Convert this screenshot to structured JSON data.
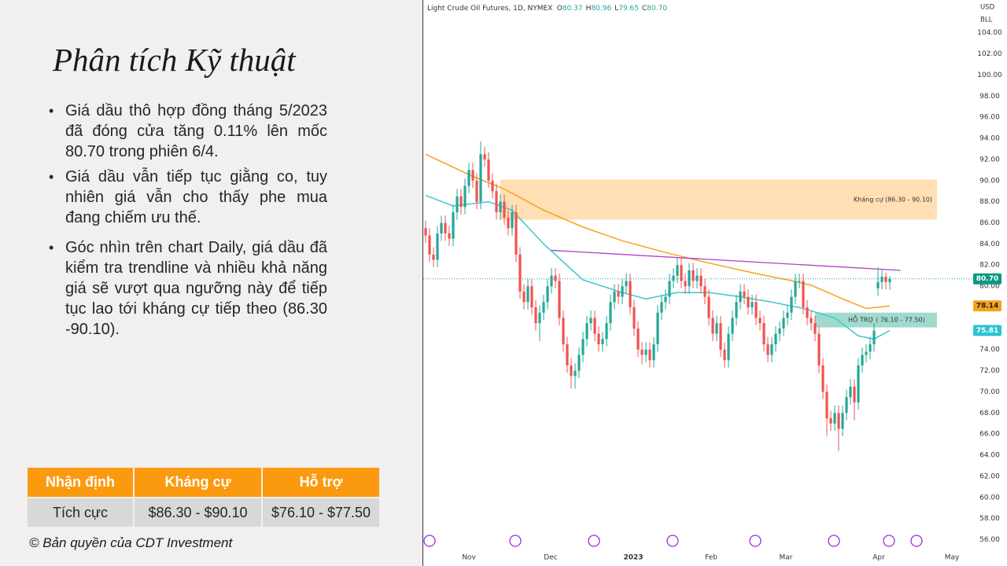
{
  "slide": {
    "title": "Phân tích Kỹ thuật",
    "bullets": [
      "Giá dầu thô hợp đồng tháng 5/2023 đã đóng cửa tăng 0.11% lên mốc 80.70 trong phiên 6/4.",
      "Giá dầu vẫn tiếp tục giằng co, tuy nhiên giá vẫn cho thấy phe mua đang chiếm ưu thế.",
      "Góc nhìn trên chart Daily, giá dầu đã kiểm tra trendline và nhiều khả năng giá sẽ vượt qua ngưỡng này để tiếp tục lao tới kháng cự tiếp theo (86.30 -90.10)."
    ],
    "table": {
      "header": [
        "Nhận định",
        "Kháng cự",
        "Hỗ trợ"
      ],
      "rows": [
        [
          "Tích cực",
          "$86.30 - $90.10",
          "$76.10 - $77.50"
        ]
      ]
    },
    "copyright": "© Bản quyền của CDT Investment"
  },
  "chart_data": {
    "type": "candlestick",
    "title": "Light Crude Oil Futures, 1D, NYMEX",
    "legend": [
      {
        "label": "O",
        "value": 80.37
      },
      {
        "label": "H",
        "value": 80.96
      },
      {
        "label": "L",
        "value": 79.65
      },
      {
        "label": "C",
        "value": 80.7,
        "value_label": "80.70"
      }
    ],
    "currency": "USD",
    "unit": "BLL",
    "up_color": "#26a69a",
    "down_color": "#ef5350",
    "x": [
      0,
      1,
      2,
      3,
      4,
      5,
      6,
      7,
      8,
      9,
      10,
      11,
      12,
      13,
      14,
      15,
      16,
      17,
      18,
      19,
      20,
      21,
      22,
      23,
      24,
      25,
      26,
      27,
      28,
      29,
      30,
      31,
      32,
      33,
      34,
      35,
      36,
      37,
      38,
      39,
      40,
      41,
      42,
      43,
      44,
      45,
      46,
      47,
      48,
      49,
      50,
      51,
      52,
      53,
      54,
      55,
      56,
      57,
      58,
      59,
      60,
      61,
      62,
      63,
      64,
      65,
      66,
      67,
      68,
      69,
      70,
      71,
      72,
      73,
      74,
      75,
      76,
      77,
      78,
      79,
      80,
      81,
      82,
      83,
      84,
      85,
      86,
      87,
      88,
      89,
      90,
      91,
      92,
      93,
      94,
      95,
      96,
      97,
      98,
      99,
      100,
      101,
      102,
      103,
      104,
      105,
      106,
      107,
      108,
      109,
      110,
      111,
      112,
      113,
      114,
      115,
      116,
      117,
      118
    ],
    "open": [
      85.5,
      84.8,
      83,
      82.5,
      85,
      86,
      85,
      84.5,
      87,
      88.5,
      87.5,
      89.5,
      91,
      90,
      88,
      92.5,
      92,
      90,
      89,
      87,
      88,
      86.5,
      85.5,
      87,
      83,
      79.5,
      78.5,
      80,
      78,
      76.5,
      77.5,
      78.5,
      80,
      81,
      80.5,
      77,
      74.5,
      72.5,
      71.5,
      72,
      73.5,
      75,
      76.5,
      77,
      75.5,
      74.5,
      75,
      76.5,
      78.5,
      79.5,
      79,
      80,
      80.5,
      78,
      76,
      74,
      73.5,
      74,
      73,
      74.5,
      77.5,
      78.5,
      79,
      80.5,
      81,
      82,
      80.5,
      80,
      81.5,
      80.5,
      81,
      80,
      79,
      77,
      75.5,
      76.5,
      74,
      73,
      75.5,
      77,
      78.5,
      79.5,
      79,
      78,
      78.5,
      77,
      76.5,
      74.5,
      73.5,
      74.5,
      75.5,
      76,
      77,
      77.5,
      79,
      80.5,
      80.5,
      78,
      77,
      76.5,
      75.5,
      72.5,
      70,
      67.5,
      67,
      68,
      66.5,
      68,
      69.5,
      70.5,
      69,
      72.5,
      73.5,
      73.8,
      74.5,
      79.8,
      80.4,
      80.9,
      80.37
    ],
    "high": [
      86.2,
      85.5,
      83.7,
      85.7,
      86.7,
      86.7,
      85.7,
      87.7,
      89.2,
      89.2,
      90.2,
      91.7,
      91.7,
      90.7,
      93.7,
      93.2,
      92.7,
      90.7,
      89.7,
      88.7,
      88.7,
      87.2,
      87.7,
      87.7,
      83.7,
      80.2,
      80.7,
      80.7,
      78.7,
      78.2,
      79.2,
      80.7,
      81.7,
      81.7,
      81.2,
      77.7,
      75.2,
      73.2,
      72.7,
      74.2,
      75.7,
      77.2,
      77.7,
      77.7,
      76.2,
      75.7,
      77.2,
      79.2,
      80.2,
      80.2,
      80.7,
      81.2,
      81.2,
      78.7,
      76.7,
      74.7,
      74.7,
      74.7,
      75.2,
      78.2,
      79.2,
      79.7,
      81.2,
      81.7,
      82.7,
      82.7,
      81.2,
      82.2,
      82.2,
      81.7,
      81.7,
      80.7,
      79.7,
      77.7,
      77.2,
      77.2,
      74.7,
      76.2,
      77.7,
      79.2,
      80.2,
      80.2,
      79.7,
      79.2,
      79.2,
      77.7,
      77.2,
      75.2,
      75.2,
      76.2,
      76.7,
      77.7,
      78.2,
      79.7,
      81.2,
      81.2,
      81.2,
      78.7,
      77.7,
      77.2,
      76.2,
      73.2,
      70.7,
      68.2,
      68.7,
      68.7,
      68.7,
      70.2,
      71.2,
      71.2,
      73.2,
      74.2,
      74.5,
      75.2,
      76.5,
      81.8,
      81.6,
      81.3,
      80.96
    ],
    "low": [
      84.1,
      82.3,
      81.8,
      81.8,
      84.3,
      84.3,
      83.8,
      83.8,
      86.3,
      86.8,
      86.8,
      88.8,
      89.3,
      87.3,
      87.3,
      91.3,
      89.3,
      88.3,
      86.3,
      86.3,
      85.8,
      84.8,
      84.8,
      82.3,
      78.8,
      77.8,
      77.8,
      77.3,
      75.8,
      74.8,
      76.8,
      77.8,
      79.3,
      79.8,
      76.3,
      73.8,
      71.8,
      70.3,
      70.3,
      71.3,
      72.8,
      74.3,
      75.8,
      74.8,
      73.8,
      73.8,
      74.3,
      75.8,
      77.8,
      78.3,
      78.3,
      79.3,
      77.3,
      75.3,
      73.3,
      72.6,
      72.8,
      72.3,
      72.3,
      73.8,
      76.8,
      77.8,
      78.3,
      79.8,
      80.3,
      79.8,
      79.3,
      79.3,
      79.8,
      79.8,
      79.3,
      78.3,
      76.3,
      74.8,
      74.8,
      73.3,
      72.3,
      72.3,
      74.8,
      76.3,
      77.8,
      78.3,
      77.3,
      77.3,
      76.3,
      75.8,
      73.8,
      72.8,
      72.8,
      73.8,
      74.8,
      75.3,
      76.3,
      76.8,
      78.3,
      79.8,
      77.3,
      76.3,
      75.8,
      74.8,
      71.8,
      69.3,
      65.8,
      66.3,
      66.3,
      64.4,
      65.8,
      67.3,
      68.8,
      67.3,
      68.3,
      71.8,
      72.8,
      73.1,
      73.8,
      79.1,
      79.7,
      79.7,
      79.65
    ],
    "close": [
      84.8,
      83,
      82.5,
      85,
      86,
      85,
      84.5,
      87,
      88.5,
      87.5,
      89.5,
      91,
      90,
      88,
      92.5,
      92,
      90,
      89,
      87,
      88,
      86.5,
      85.5,
      87,
      83,
      79.5,
      78.5,
      80,
      78,
      76.5,
      77.5,
      78.5,
      80,
      81,
      80.5,
      77,
      74.5,
      72.5,
      71.5,
      72,
      73.5,
      75,
      76.5,
      77,
      75.5,
      74.5,
      75,
      76.5,
      78.5,
      79.5,
      79,
      80,
      80.5,
      78,
      76,
      74,
      73.5,
      74,
      73,
      74.5,
      77.5,
      78.5,
      79,
      80.5,
      81,
      82,
      80.5,
      80,
      81.5,
      80.5,
      81,
      80,
      79,
      77,
      75.5,
      76.5,
      74,
      73,
      75.5,
      77,
      78.5,
      79.5,
      79,
      78,
      78.5,
      77,
      76.5,
      74.5,
      73.5,
      74.5,
      75.5,
      76,
      77,
      77.5,
      79,
      80.5,
      80.5,
      78,
      77,
      76.5,
      75.5,
      72.5,
      70,
      67.5,
      67,
      68,
      66.5,
      68,
      69.5,
      70.5,
      69,
      72.5,
      73.5,
      73.8,
      74.5,
      75.8,
      80.4,
      80.9,
      80.4,
      80.7
    ],
    "lines": [
      {
        "color": "#f7a21b",
        "x": [
          0,
          12,
          20,
          30,
          40,
          50,
          62,
          72,
          84,
          92,
          98,
          106,
          112,
          118
        ],
        "values": [
          92.5,
          90.4,
          89.2,
          87.2,
          85.6,
          84.3,
          83.1,
          82.2,
          81.2,
          80.6,
          80.1,
          78.8,
          77.9,
          78.14
        ]
      },
      {
        "color": "#3ec6d0",
        "x": [
          0,
          7,
          16,
          22,
          30,
          40,
          50,
          56,
          64,
          72,
          80,
          88,
          96,
          104,
          110,
          114,
          118
        ],
        "values": [
          88.6,
          87.6,
          88,
          87.2,
          84,
          80.6,
          79.4,
          78.8,
          79.4,
          79.4,
          79,
          78.5,
          77.9,
          77,
          75.3,
          75,
          75.81
        ]
      }
    ],
    "zones": [
      {
        "label": "Kháng cự (86.30 - 90.10)",
        "low": 86.3,
        "high": 90.1,
        "x": [
          19,
          130
        ],
        "color": "#ffd9a6"
      },
      {
        "label": "HỖ TRỢ ( 76.10 - 77.50)",
        "low": 76.1,
        "high": 77.5,
        "x": [
          99,
          130
        ],
        "color": "#8fd3c6"
      }
    ],
    "trendline": {
      "color": "#b23fc4",
      "x": [
        32,
        120.8
      ],
      "values": [
        83.4,
        81.5
      ]
    },
    "badges": [
      {
        "value": 80.7,
        "label": "80.70",
        "color": "#089981"
      },
      {
        "value": 78.14,
        "label": "78.14",
        "color": "#f7a21b"
      },
      {
        "value": 75.81,
        "label": "75.81",
        "color": "#29c4d0"
      }
    ],
    "xlim": [
      -0.6,
      138.2
    ],
    "ylim": [
      55,
      107.1
    ],
    "xticks": [
      {
        "value": 11,
        "label": "Nov"
      },
      {
        "value": 31.8,
        "label": "Dec"
      },
      {
        "value": 52.8,
        "label": "2023"
      },
      {
        "value": 72.6,
        "label": "Feb"
      },
      {
        "value": 91.6,
        "label": "Mar"
      },
      {
        "value": 115.2,
        "label": "Apr"
      },
      {
        "value": 133.8,
        "label": "May"
      }
    ],
    "yticks": [
      {
        "value": 56,
        "label": "56.00"
      },
      {
        "value": 58,
        "label": "58.00"
      },
      {
        "value": 60,
        "label": "60.00"
      },
      {
        "value": 62,
        "label": "62.00"
      },
      {
        "value": 64,
        "label": "64.00"
      },
      {
        "value": 66,
        "label": "66.00"
      },
      {
        "value": 68,
        "label": "68.00"
      },
      {
        "value": 70,
        "label": "70.00"
      },
      {
        "value": 72,
        "label": "72.00"
      },
      {
        "value": 74,
        "label": "74.00"
      },
      {
        "value": 76,
        "label": "76.00"
      },
      {
        "value": 78,
        "label": "78.00"
      },
      {
        "value": 80,
        "label": "80.00"
      },
      {
        "value": 82,
        "label": "82.00"
      },
      {
        "value": 84,
        "label": "84.00"
      },
      {
        "value": 86,
        "label": "86.00"
      },
      {
        "value": 88,
        "label": "88.00"
      },
      {
        "value": 90,
        "label": "90.00"
      },
      {
        "value": 92,
        "label": "92.00"
      },
      {
        "value": 94,
        "label": "94.00"
      },
      {
        "value": 96,
        "label": "96.00"
      },
      {
        "value": 98,
        "label": "98.00"
      },
      {
        "value": 100,
        "label": "100.00"
      },
      {
        "value": 102,
        "label": "102.00"
      },
      {
        "value": 104,
        "label": "104.00"
      }
    ]
  }
}
